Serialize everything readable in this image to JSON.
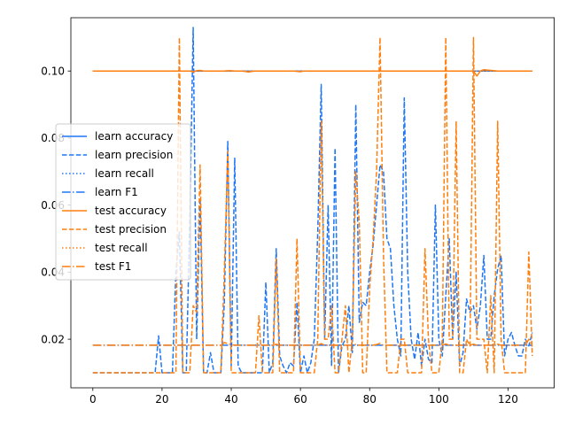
{
  "chart_data": {
    "type": "line",
    "title": "",
    "xlabel": "",
    "ylabel": "",
    "xlim": [
      -6.35,
      133.35
    ],
    "ylim": [
      0.0055,
      0.1159
    ],
    "xticks": [
      0,
      20,
      40,
      60,
      80,
      100,
      120
    ],
    "yticks": [
      0.02,
      0.04,
      0.06,
      0.08,
      0.1
    ],
    "ytick_labels": [
      "0.02",
      "0.04",
      "0.06",
      "0.08",
      "0.10"
    ],
    "grid": false,
    "legend_position": "center-left",
    "colors": {
      "learn": "#1f77f5",
      "test": "#ff7f0e"
    },
    "x": [
      0,
      1,
      2,
      3,
      4,
      5,
      6,
      7,
      8,
      9,
      10,
      11,
      12,
      13,
      14,
      15,
      16,
      17,
      18,
      19,
      20,
      21,
      22,
      23,
      24,
      25,
      26,
      27,
      28,
      29,
      30,
      31,
      32,
      33,
      34,
      35,
      36,
      37,
      38,
      39,
      40,
      41,
      42,
      43,
      44,
      45,
      46,
      47,
      48,
      49,
      50,
      51,
      52,
      53,
      54,
      55,
      56,
      57,
      58,
      59,
      60,
      61,
      62,
      63,
      64,
      65,
      66,
      67,
      68,
      69,
      70,
      71,
      72,
      73,
      74,
      75,
      76,
      77,
      78,
      79,
      80,
      81,
      82,
      83,
      84,
      85,
      86,
      87,
      88,
      89,
      90,
      91,
      92,
      93,
      94,
      95,
      96,
      97,
      98,
      99,
      100,
      101,
      102,
      103,
      104,
      105,
      106,
      107,
      108,
      109,
      110,
      111,
      112,
      113,
      114,
      115,
      116,
      117,
      118,
      119,
      120,
      121,
      122,
      123,
      124,
      125,
      126,
      127
    ],
    "series": [
      {
        "name": "learn accuracy",
        "color_key": "learn",
        "style": "solid",
        "values": [
          0.1,
          0.1,
          0.1,
          0.1,
          0.1,
          0.1,
          0.1,
          0.1,
          0.1,
          0.1,
          0.1,
          0.1,
          0.1,
          0.1,
          0.1,
          0.1,
          0.1,
          0.1,
          0.1,
          0.1,
          0.1,
          0.1,
          0.1,
          0.1,
          0.1,
          0.1,
          0.1,
          0.1,
          0.1,
          0.1,
          0.1,
          0.1,
          0.1,
          0.1,
          0.1,
          0.1,
          0.1,
          0.1,
          0.1,
          0.1,
          0.1,
          0.1,
          0.1,
          0.1,
          0.1,
          0.1,
          0.1,
          0.1,
          0.1,
          0.1,
          0.1,
          0.1,
          0.1,
          0.1,
          0.1,
          0.1,
          0.1,
          0.1,
          0.1,
          0.1,
          0.1,
          0.1,
          0.1,
          0.1,
          0.1,
          0.1,
          0.1,
          0.1,
          0.1,
          0.1,
          0.1,
          0.1,
          0.1,
          0.1,
          0.1,
          0.1,
          0.1,
          0.1,
          0.1,
          0.1,
          0.1,
          0.1,
          0.1,
          0.1,
          0.1,
          0.1,
          0.1,
          0.1,
          0.1,
          0.1,
          0.1,
          0.1,
          0.1,
          0.1,
          0.1,
          0.1,
          0.1,
          0.1,
          0.1,
          0.1,
          0.1,
          0.1,
          0.1,
          0.1,
          0.1,
          0.1,
          0.1,
          0.1,
          0.1,
          0.1,
          0.1,
          0.1,
          0.1,
          0.1,
          0.1,
          0.1,
          0.1,
          0.1,
          0.1,
          0.1,
          0.1,
          0.1,
          0.1,
          0.1,
          0.1,
          0.1,
          0.1,
          0.1
        ]
      },
      {
        "name": "learn precision",
        "color_key": "learn",
        "style": "dashed",
        "values": [
          0.01,
          0.01,
          0.01,
          0.01,
          0.01,
          0.01,
          0.01,
          0.01,
          0.01,
          0.01,
          0.01,
          0.01,
          0.01,
          0.01,
          0.01,
          0.01,
          0.01,
          0.01,
          0.01,
          0.021,
          0.01,
          0.01,
          0.01,
          0.01,
          0.04,
          0.052,
          0.01,
          0.01,
          0.055,
          0.113,
          0.02,
          0.062,
          0.01,
          0.01,
          0.016,
          0.01,
          0.01,
          0.01,
          0.031,
          0.079,
          0.012,
          0.074,
          0.012,
          0.01,
          0.01,
          0.01,
          0.01,
          0.01,
          0.01,
          0.01,
          0.037,
          0.01,
          0.013,
          0.047,
          0.015,
          0.012,
          0.01,
          0.013,
          0.012,
          0.031,
          0.01,
          0.015,
          0.01,
          0.013,
          0.02,
          0.052,
          0.096,
          0.02,
          0.06,
          0.012,
          0.077,
          0.01,
          0.018,
          0.02,
          0.03,
          0.016,
          0.09,
          0.025,
          0.031,
          0.03,
          0.04,
          0.048,
          0.06,
          0.072,
          0.07,
          0.05,
          0.047,
          0.03,
          0.02,
          0.015,
          0.092,
          0.04,
          0.02,
          0.014,
          0.022,
          0.012,
          0.02,
          0.014,
          0.013,
          0.06,
          0.02,
          0.015,
          0.033,
          0.05,
          0.02,
          0.04,
          0.012,
          0.016,
          0.032,
          0.028,
          0.03,
          0.023,
          0.03,
          0.045,
          0.02,
          0.02,
          0.033,
          0.041,
          0.045,
          0.015,
          0.02,
          0.022,
          0.018,
          0.015,
          0.015,
          0.02,
          0.018,
          0.022
        ]
      },
      {
        "name": "learn recall",
        "color_key": "learn",
        "style": "dotted",
        "values": [
          0.1,
          0.1,
          0.1,
          0.1,
          0.1,
          0.1,
          0.1,
          0.1,
          0.1,
          0.1,
          0.1,
          0.1,
          0.1,
          0.1,
          0.1,
          0.1,
          0.1,
          0.1,
          0.1,
          0.1,
          0.1,
          0.1,
          0.1,
          0.1,
          0.1,
          0.1,
          0.1,
          0.1,
          0.1,
          0.1,
          0.1,
          0.1,
          0.1,
          0.1,
          0.1,
          0.1,
          0.1,
          0.1,
          0.1,
          0.1,
          0.1,
          0.1,
          0.1,
          0.1,
          0.1,
          0.1,
          0.1,
          0.1,
          0.1,
          0.1,
          0.1,
          0.1,
          0.1,
          0.1,
          0.1,
          0.1,
          0.1,
          0.1,
          0.1,
          0.1,
          0.1,
          0.1,
          0.1,
          0.1,
          0.1,
          0.1,
          0.1,
          0.1,
          0.1,
          0.1,
          0.1,
          0.1,
          0.1,
          0.1,
          0.1,
          0.1,
          0.1,
          0.1,
          0.1,
          0.1,
          0.1,
          0.1,
          0.1,
          0.1,
          0.1,
          0.1,
          0.1,
          0.1,
          0.1,
          0.1,
          0.1,
          0.1,
          0.1,
          0.1,
          0.1,
          0.1,
          0.1,
          0.1,
          0.1,
          0.1,
          0.1,
          0.1,
          0.1,
          0.1,
          0.1,
          0.1,
          0.1,
          0.1,
          0.1,
          0.1,
          0.1,
          0.1,
          0.1,
          0.1,
          0.1,
          0.1,
          0.1,
          0.1,
          0.1,
          0.1,
          0.1,
          0.1,
          0.1,
          0.1,
          0.1,
          0.1,
          0.1,
          0.1
        ]
      },
      {
        "name": "learn F1",
        "color_key": "learn",
        "style": "dashdot",
        "values": [
          0.0182,
          0.0182,
          0.0182,
          0.0182,
          0.0182,
          0.0182,
          0.0182,
          0.0182,
          0.0182,
          0.0182,
          0.0182,
          0.0182,
          0.0182,
          0.0182,
          0.0182,
          0.0182,
          0.0182,
          0.0182,
          0.0182,
          0.0182,
          0.0182,
          0.0182,
          0.0182,
          0.0182,
          0.0182,
          0.0182,
          0.0182,
          0.0182,
          0.0182,
          0.0182,
          0.0182,
          0.0182,
          0.0182,
          0.0182,
          0.0182,
          0.0182,
          0.0182,
          0.0182,
          0.0182,
          0.0182,
          0.0182,
          0.0182,
          0.0182,
          0.0182,
          0.0182,
          0.0182,
          0.0182,
          0.0182,
          0.0182,
          0.0182,
          0.0182,
          0.0182,
          0.0182,
          0.0182,
          0.0182,
          0.0182,
          0.0182,
          0.0182,
          0.0182,
          0.0182,
          0.0182,
          0.0182,
          0.0182,
          0.0182,
          0.0182,
          0.0182,
          0.0182,
          0.0182,
          0.0182,
          0.0182,
          0.0182,
          0.0182,
          0.0182,
          0.0182,
          0.0182,
          0.0182,
          0.0182,
          0.0182,
          0.0182,
          0.0182,
          0.0182,
          0.0182,
          0.0182,
          0.0182,
          0.0182,
          0.0182,
          0.0182,
          0.0182,
          0.0182,
          0.0182,
          0.0182,
          0.0182,
          0.0182,
          0.0182,
          0.0182,
          0.0182,
          0.0182,
          0.0182,
          0.0182,
          0.0182,
          0.0182,
          0.0182,
          0.0182,
          0.0182,
          0.0182,
          0.0182,
          0.0182,
          0.0182,
          0.0182,
          0.0182,
          0.0182,
          0.0182,
          0.0182,
          0.0182,
          0.0182,
          0.0182,
          0.0182,
          0.0182,
          0.0182,
          0.0182,
          0.0182,
          0.0182,
          0.0182,
          0.0182,
          0.0182,
          0.0182,
          0.0182,
          0.0182
        ]
      },
      {
        "name": "test accuracy",
        "color_key": "test",
        "style": "solid",
        "values": [
          0.1,
          0.1,
          0.1,
          0.1,
          0.1,
          0.1,
          0.1,
          0.1,
          0.1,
          0.1,
          0.1,
          0.1,
          0.1,
          0.1,
          0.1,
          0.1,
          0.1,
          0.1,
          0.1,
          0.1,
          0.1,
          0.1,
          0.1,
          0.1,
          0.1,
          0.1,
          0.1,
          0.1,
          0.1,
          0.0997,
          0.1001,
          0.1002,
          0.1,
          0.1,
          0.1,
          0.1,
          0.1,
          0.1,
          0.1,
          0.1001,
          0.1001,
          0.1,
          0.1,
          0.1,
          0.0999,
          0.0997,
          0.0999,
          0.1,
          0.1,
          0.1,
          0.1,
          0.1,
          0.1,
          0.1,
          0.1,
          0.1,
          0.1,
          0.1,
          0.1,
          0.0999,
          0.0998,
          0.1,
          0.1,
          0.1,
          0.1,
          0.1,
          0.1,
          0.1,
          0.1,
          0.1,
          0.1,
          0.1,
          0.1,
          0.1,
          0.1,
          0.1,
          0.1,
          0.1,
          0.1,
          0.1,
          0.1,
          0.1,
          0.1,
          0.1,
          0.1,
          0.1,
          0.1,
          0.1,
          0.1,
          0.1,
          0.1,
          0.1,
          0.1,
          0.1,
          0.1,
          0.1,
          0.1,
          0.1,
          0.1,
          0.1,
          0.1,
          0.1,
          0.1,
          0.1,
          0.1,
          0.1,
          0.1,
          0.1,
          0.1,
          0.1,
          0.1,
          0.0985,
          0.1,
          0.1004,
          0.1003,
          0.1002,
          0.1001,
          0.1,
          0.1,
          0.1,
          0.1,
          0.1,
          0.1,
          0.1,
          0.1,
          0.1,
          0.1,
          0.1
        ]
      },
      {
        "name": "test precision",
        "color_key": "test",
        "style": "dashed",
        "values": [
          0.01,
          0.01,
          0.01,
          0.01,
          0.01,
          0.01,
          0.01,
          0.01,
          0.01,
          0.01,
          0.01,
          0.01,
          0.01,
          0.01,
          0.01,
          0.01,
          0.01,
          0.01,
          0.01,
          0.01,
          0.01,
          0.01,
          0.01,
          0.01,
          0.01,
          0.11,
          0.01,
          0.01,
          0.01,
          0.03,
          0.028,
          0.072,
          0.01,
          0.01,
          0.01,
          0.01,
          0.01,
          0.01,
          0.04,
          0.076,
          0.01,
          0.01,
          0.01,
          0.01,
          0.01,
          0.01,
          0.01,
          0.01,
          0.027,
          0.01,
          0.01,
          0.01,
          0.01,
          0.044,
          0.01,
          0.01,
          0.01,
          0.01,
          0.01,
          0.05,
          0.01,
          0.01,
          0.01,
          0.01,
          0.01,
          0.02,
          0.085,
          0.02,
          0.02,
          0.03,
          0.01,
          0.01,
          0.02,
          0.03,
          0.01,
          0.02,
          0.07,
          0.055,
          0.01,
          0.01,
          0.035,
          0.05,
          0.07,
          0.11,
          0.045,
          0.01,
          0.01,
          0.01,
          0.01,
          0.02,
          0.02,
          0.01,
          0.01,
          0.01,
          0.01,
          0.01,
          0.047,
          0.02,
          0.01,
          0.01,
          0.01,
          0.02,
          0.11,
          0.02,
          0.02,
          0.085,
          0.01,
          0.01,
          0.02,
          0.018,
          0.11,
          0.02,
          0.02,
          0.02,
          0.01,
          0.033,
          0.01,
          0.085,
          0.02,
          0.01,
          0.01,
          0.01,
          0.01,
          0.01,
          0.01,
          0.01,
          0.046,
          0.015
        ]
      },
      {
        "name": "test recall",
        "color_key": "test",
        "style": "dotted",
        "values": [
          0.1,
          0.1,
          0.1,
          0.1,
          0.1,
          0.1,
          0.1,
          0.1,
          0.1,
          0.1,
          0.1,
          0.1,
          0.1,
          0.1,
          0.1,
          0.1,
          0.1,
          0.1,
          0.1,
          0.1,
          0.1,
          0.1,
          0.1,
          0.1,
          0.1,
          0.1,
          0.1,
          0.1,
          0.1,
          0.1,
          0.1,
          0.1,
          0.1,
          0.1,
          0.1,
          0.1,
          0.1,
          0.1,
          0.1,
          0.1,
          0.1,
          0.1,
          0.1,
          0.1,
          0.1,
          0.1,
          0.1,
          0.1,
          0.1,
          0.1,
          0.1,
          0.1,
          0.1,
          0.1,
          0.1,
          0.1,
          0.1,
          0.1,
          0.1,
          0.1,
          0.1,
          0.1,
          0.1,
          0.1,
          0.1,
          0.1,
          0.1,
          0.1,
          0.1,
          0.1,
          0.1,
          0.1,
          0.1,
          0.1,
          0.1,
          0.1,
          0.1,
          0.1,
          0.1,
          0.1,
          0.1,
          0.1,
          0.1,
          0.1,
          0.1,
          0.1,
          0.1,
          0.1,
          0.1,
          0.1,
          0.1,
          0.1,
          0.1,
          0.1,
          0.1,
          0.1,
          0.1,
          0.1,
          0.1,
          0.1,
          0.1,
          0.1,
          0.1,
          0.1,
          0.1,
          0.1,
          0.1,
          0.1,
          0.1,
          0.1,
          0.1,
          0.1,
          0.1,
          0.1,
          0.1,
          0.1,
          0.1,
          0.1,
          0.1,
          0.1,
          0.1,
          0.1,
          0.1,
          0.1,
          0.1,
          0.1,
          0.1,
          0.1
        ]
      },
      {
        "name": "test F1",
        "color_key": "test",
        "style": "dashdot",
        "values": [
          0.0182,
          0.0182,
          0.0182,
          0.0182,
          0.0182,
          0.0182,
          0.0182,
          0.0182,
          0.0182,
          0.0182,
          0.0182,
          0.0182,
          0.0182,
          0.0182,
          0.0182,
          0.0182,
          0.0182,
          0.0182,
          0.0182,
          0.0182,
          0.0182,
          0.0182,
          0.0182,
          0.0182,
          0.0182,
          0.0182,
          0.0182,
          0.0182,
          0.0182,
          0.0182,
          0.0182,
          0.0182,
          0.0182,
          0.0182,
          0.0182,
          0.0182,
          0.0182,
          0.0182,
          0.019,
          0.0187,
          0.0184,
          0.0182,
          0.0182,
          0.0182,
          0.0182,
          0.0182,
          0.0182,
          0.0182,
          0.0182,
          0.0182,
          0.0182,
          0.0182,
          0.0182,
          0.0185,
          0.0182,
          0.0182,
          0.0182,
          0.0182,
          0.0182,
          0.0182,
          0.0182,
          0.0182,
          0.0182,
          0.0182,
          0.0182,
          0.0182,
          0.0187,
          0.0182,
          0.0182,
          0.0182,
          0.0182,
          0.0182,
          0.0182,
          0.0182,
          0.0182,
          0.0182,
          0.0184,
          0.0182,
          0.0182,
          0.0182,
          0.0182,
          0.0182,
          0.0184,
          0.0188,
          0.0182,
          0.0182,
          0.0182,
          0.0182,
          0.0182,
          0.0182,
          0.0182,
          0.0182,
          0.0182,
          0.0182,
          0.0182,
          0.0182,
          0.0182,
          0.0182,
          0.0182,
          0.0182,
          0.0182,
          0.0182,
          0.0186,
          0.0182,
          0.0182,
          0.0182,
          0.0182,
          0.0182,
          0.0182,
          0.0182,
          0.0185,
          0.0182,
          0.0182,
          0.0182,
          0.0182,
          0.0182,
          0.0182,
          0.0185,
          0.0182,
          0.0182,
          0.0182,
          0.0182,
          0.0182,
          0.0182,
          0.0182,
          0.0182,
          0.02,
          0.0178
        ]
      }
    ]
  }
}
